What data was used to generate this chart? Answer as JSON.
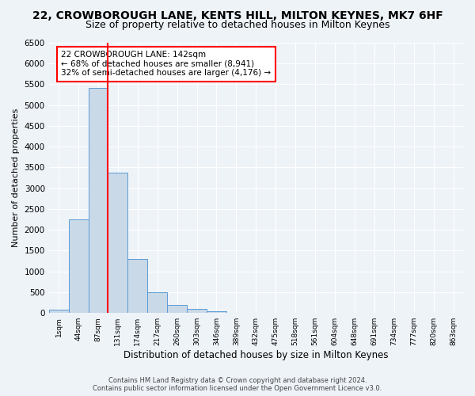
{
  "title": "22, CROWBOROUGH LANE, KENTS HILL, MILTON KEYNES, MK7 6HF",
  "subtitle": "Size of property relative to detached houses in Milton Keynes",
  "xlabel": "Distribution of detached houses by size in Milton Keynes",
  "ylabel": "Number of detached properties",
  "bar_values": [
    75,
    2250,
    5420,
    3370,
    1300,
    490,
    185,
    90,
    50,
    0,
    0,
    0,
    0,
    0,
    0,
    0,
    0,
    0,
    0,
    0,
    0
  ],
  "categories": [
    "1sqm",
    "44sqm",
    "87sqm",
    "131sqm",
    "174sqm",
    "217sqm",
    "260sqm",
    "303sqm",
    "346sqm",
    "389sqm",
    "432sqm",
    "475sqm",
    "518sqm",
    "561sqm",
    "604sqm",
    "648sqm",
    "691sqm",
    "734sqm",
    "777sqm",
    "820sqm",
    "863sqm"
  ],
  "bar_color": "#c9d9e8",
  "bar_edge_color": "#5b9bd5",
  "vline_pos": 2.5,
  "vline_color": "red",
  "annotation_text_line1": "22 CROWBOROUGH LANE: 142sqm",
  "annotation_text_line2": "← 68% of detached houses are smaller (8,941)",
  "annotation_text_line3": "32% of semi-detached houses are larger (4,176) →",
  "annotation_box_edge_color": "red",
  "ylim": [
    0,
    6500
  ],
  "yticks": [
    0,
    500,
    1000,
    1500,
    2000,
    2500,
    3000,
    3500,
    4000,
    4500,
    5000,
    5500,
    6000,
    6500
  ],
  "footer_line1": "Contains HM Land Registry data © Crown copyright and database right 2024.",
  "footer_line2": "Contains public sector information licensed under the Open Government Licence v3.0.",
  "bg_color": "#eef3f8",
  "grid_color": "#ffffff",
  "title_fontsize": 10,
  "subtitle_fontsize": 9
}
